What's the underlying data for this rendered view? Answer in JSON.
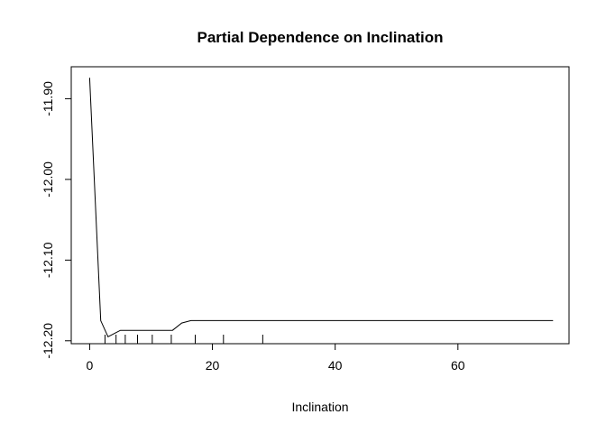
{
  "chart_data": {
    "type": "line",
    "title": "Partial Dependence on  Inclination",
    "xlabel": "Inclination",
    "ylabel": "",
    "xlim": [
      -3.0,
      78.1
    ],
    "ylim": [
      -12.2036,
      -11.8604
    ],
    "x_ticks": [
      {
        "value": 0,
        "label": "0"
      },
      {
        "value": 20,
        "label": "20"
      },
      {
        "value": 40,
        "label": "40"
      },
      {
        "value": 60,
        "label": "60"
      }
    ],
    "y_ticks": [
      {
        "value": -11.9,
        "label": "-11.90"
      },
      {
        "value": -12.0,
        "label": "-12.00"
      },
      {
        "value": -12.1,
        "label": "-12.10"
      },
      {
        "value": -12.2,
        "label": "-12.20"
      }
    ],
    "grid": false,
    "series": [
      {
        "x": [
          0,
          1.8,
          3.0,
          5.0,
          8.0,
          13.5,
          15.0,
          16.5,
          20,
          30,
          40,
          50,
          60,
          70,
          75.5
        ],
        "y": [
          -11.874,
          -12.175,
          -12.195,
          -12.187,
          -12.187,
          -12.187,
          -12.178,
          -12.175,
          -12.175,
          -12.175,
          -12.175,
          -12.175,
          -12.175,
          -12.175,
          -12.175
        ]
      }
    ],
    "rug": [
      2.5,
      4.3,
      5.8,
      7.8,
      10.2,
      13.3,
      17.2,
      21.8,
      28.2
    ]
  }
}
